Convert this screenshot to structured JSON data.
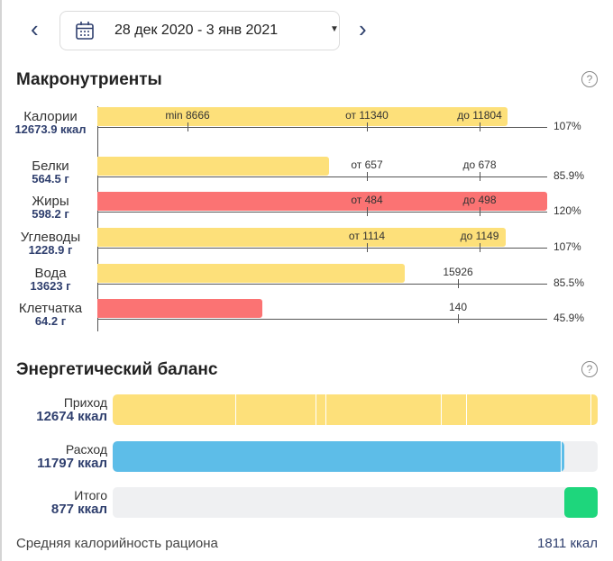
{
  "header": {
    "date_range": "28 дек 2020 - 3 янв 2021",
    "prev_icon": "chevron-left-icon",
    "next_icon": "chevron-right-icon",
    "calendar_icon": "calendar-icon",
    "dropdown_icon": "caret-down-icon"
  },
  "macros": {
    "title": "Макронутриенты",
    "help": "?",
    "rows": [
      {
        "name": "Калории",
        "value": "12673.9 ккал",
        "percent": "107%",
        "color": "#fde07a",
        "level": 0.912,
        "ticks": [
          "min 8666",
          "от 11340",
          "до 11804"
        ]
      },
      {
        "name": "Белки",
        "value": "564.5 г",
        "percent": "85.9%",
        "color": "#fde07a",
        "level": 0.515,
        "ticks": [
          "от 657",
          "до 678"
        ]
      },
      {
        "name": "Жиры",
        "value": "598.2 г",
        "percent": "120%",
        "color": "#fb7373",
        "level": 1.0,
        "ticks": [
          "от 484",
          "до 498"
        ]
      },
      {
        "name": "Углеводы",
        "value": "1228.9 г",
        "percent": "107%",
        "color": "#fde07a",
        "level": 0.908,
        "ticks": [
          "от 1114",
          "до 1149"
        ]
      },
      {
        "name": "Вода",
        "value": "13623 г",
        "percent": "85.5%",
        "color": "#fde07a",
        "level": 0.683,
        "ticks": [
          "15926"
        ]
      },
      {
        "name": "Клетчатка",
        "value": "64.2 г",
        "percent": "45.9%",
        "color": "#fb7373",
        "level": 0.367,
        "ticks": [
          "140"
        ]
      }
    ]
  },
  "energy": {
    "title": "Энергетический баланс",
    "help": "?",
    "rows": [
      {
        "name": "Приход",
        "value": "12674 ккал",
        "color": "#fde07a",
        "level": 1.0
      },
      {
        "name": "Расход",
        "value": "11797 ккал",
        "color": "#5dbde8",
        "level": 0.931
      },
      {
        "name": "Итого",
        "value": "877 ккал",
        "color": "#1ed67c",
        "level": 0.069
      }
    ]
  },
  "footer": {
    "label": "Средняя калорийность рациона",
    "value": "1811 ккал"
  }
}
